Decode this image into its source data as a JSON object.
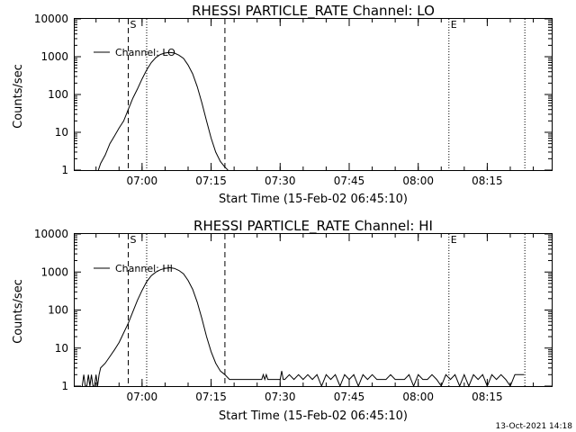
{
  "chart_data": [
    {
      "type": "line",
      "title": "RHESSI PARTICLE_RATE Channel: LO",
      "xlabel": "Start Time (15-Feb-02 06:45:10)",
      "ylabel": "Counts/sec",
      "yscale": "log",
      "ylim": [
        1,
        10000
      ],
      "yticks": [
        1,
        10,
        100,
        1000,
        10000
      ],
      "ytick_labels": [
        "1",
        "10",
        "100",
        "1000",
        "10000"
      ],
      "xlim": [
        "06:45:10",
        "08:29:00"
      ],
      "xticks": [
        "07:00",
        "07:15",
        "07:30",
        "07:45",
        "08:00",
        "08:15"
      ],
      "legend": {
        "label": "Channel: LO",
        "position": "top-left"
      },
      "markers": [
        {
          "time": "06:57:00",
          "style": "dashed",
          "label": "S"
        },
        {
          "time": "07:01:00",
          "style": "dotted",
          "label": ""
        },
        {
          "time": "07:18:00",
          "style": "dashed",
          "label": ""
        },
        {
          "time": "08:06:40",
          "style": "dotted",
          "label": "E"
        },
        {
          "time": "08:23:10",
          "style": "dotted",
          "label": ""
        }
      ],
      "series": [
        {
          "x": [
            "06:50:30",
            "06:51:00",
            "06:52:00",
            "06:53:00",
            "06:54:00",
            "06:55:00",
            "06:56:00",
            "06:57:00",
            "06:58:00",
            "06:59:00",
            "07:00:00",
            "07:01:00",
            "07:02:00",
            "07:03:00",
            "07:04:00",
            "07:05:00",
            "07:06:00",
            "07:07:00",
            "07:08:00",
            "07:09:00",
            "07:10:00",
            "07:11:00",
            "07:12:00",
            "07:13:00",
            "07:14:00",
            "07:15:00",
            "07:16:00",
            "07:17:00",
            "07:18:00",
            "07:18:40"
          ],
          "y": [
            1,
            1.5,
            2.5,
            5,
            8,
            13,
            20,
            40,
            80,
            140,
            260,
            450,
            700,
            950,
            1150,
            1250,
            1300,
            1250,
            1100,
            900,
            600,
            350,
            160,
            60,
            20,
            7,
            3,
            1.7,
            1.2,
            1
          ]
        }
      ]
    },
    {
      "type": "line",
      "title": "RHESSI PARTICLE_RATE Channel: HI",
      "xlabel": "Start Time (15-Feb-02 06:45:10)",
      "ylabel": "Counts/sec",
      "yscale": "log",
      "ylim": [
        1,
        10000
      ],
      "yticks": [
        1,
        10,
        100,
        1000,
        10000
      ],
      "ytick_labels": [
        "1",
        "10",
        "100",
        "1000",
        "10000"
      ],
      "xlim": [
        "06:45:10",
        "08:29:00"
      ],
      "xticks": [
        "07:00",
        "07:15",
        "07:30",
        "07:45",
        "08:00",
        "08:15"
      ],
      "legend": {
        "label": "Channel: HI",
        "position": "top-left"
      },
      "markers": [
        {
          "time": "06:57:00",
          "style": "dashed",
          "label": "S"
        },
        {
          "time": "07:01:00",
          "style": "dotted",
          "label": ""
        },
        {
          "time": "07:18:00",
          "style": "dashed",
          "label": ""
        },
        {
          "time": "08:06:40",
          "style": "dotted",
          "label": "E"
        },
        {
          "time": "08:23:10",
          "style": "dotted",
          "label": ""
        }
      ],
      "series": [
        {
          "x": [
            "06:47:00",
            "06:47:20",
            "06:47:40",
            "06:48:00",
            "06:48:20",
            "06:48:40",
            "06:49:00",
            "06:49:20",
            "06:49:40",
            "06:50:00",
            "06:50:20",
            "06:50:40",
            "06:51:00",
            "06:52:00",
            "06:53:00",
            "06:54:00",
            "06:55:00",
            "06:56:00",
            "06:57:00",
            "06:58:00",
            "06:59:00",
            "07:00:00",
            "07:01:00",
            "07:02:00",
            "07:03:00",
            "07:04:00",
            "07:05:00",
            "07:06:00",
            "07:07:00",
            "07:08:00",
            "07:09:00",
            "07:10:00",
            "07:11:00",
            "07:12:00",
            "07:13:00",
            "07:14:00",
            "07:15:00",
            "07:16:00",
            "07:17:00",
            "07:18:00",
            "07:19:00",
            "07:20:00",
            "07:22:00",
            "07:24:00",
            "07:26:00",
            "07:26:20",
            "07:26:40",
            "07:27:00",
            "07:27:20",
            "07:28:00",
            "07:30:00",
            "07:30:20",
            "07:30:40",
            "07:31:00",
            "07:32:00",
            "07:33:00",
            "07:34:00",
            "07:35:00",
            "07:36:00",
            "07:37:00",
            "07:38:00",
            "07:39:00",
            "07:40:00",
            "07:41:00",
            "07:42:00",
            "07:43:00",
            "07:44:00",
            "07:45:00",
            "07:46:00",
            "07:47:00",
            "07:48:00",
            "07:49:00",
            "07:50:00",
            "07:51:00",
            "07:52:00",
            "07:53:00",
            "07:54:00",
            "07:55:00",
            "07:56:00",
            "07:57:00",
            "07:58:00",
            "07:59:00",
            "08:00:00",
            "08:01:00",
            "08:02:00",
            "08:03:00",
            "08:04:00",
            "08:05:00",
            "08:06:00",
            "08:07:00",
            "08:08:00",
            "08:09:00",
            "08:10:00",
            "08:11:00",
            "08:12:00",
            "08:13:00",
            "08:14:00",
            "08:15:00",
            "08:16:00",
            "08:17:00",
            "08:18:00",
            "08:19:00",
            "08:20:00",
            "08:21:00",
            "08:22:00",
            "08:23:00"
          ],
          "y": [
            1,
            2,
            1,
            1,
            2,
            1,
            2,
            1,
            1,
            2,
            1,
            2,
            3,
            4,
            6,
            9,
            14,
            25,
            45,
            90,
            180,
            330,
            560,
            800,
            1000,
            1150,
            1250,
            1300,
            1250,
            1100,
            900,
            600,
            350,
            160,
            60,
            20,
            8,
            4,
            2.5,
            2,
            1.5,
            1.5,
            1.5,
            1.5,
            1.5,
            2,
            1.5,
            2,
            1.5,
            1.5,
            1.5,
            2.5,
            1.5,
            1.5,
            2,
            1.5,
            2,
            1.5,
            2,
            1.5,
            2,
            1,
            2,
            1.5,
            2,
            1,
            2,
            1.5,
            2,
            1,
            2,
            1.5,
            2,
            1.5,
            1.5,
            1.5,
            2,
            1.5,
            1.5,
            1.5,
            2,
            1,
            2,
            1.5,
            1.5,
            2,
            1.5,
            1,
            2,
            1.5,
            2,
            1,
            2,
            1,
            2,
            1.5,
            2,
            1,
            2,
            1.5,
            2,
            1.5,
            1,
            2,
            2,
            2
          ]
        }
      ]
    }
  ],
  "timestamp": "13-Oct-2021 14:18"
}
